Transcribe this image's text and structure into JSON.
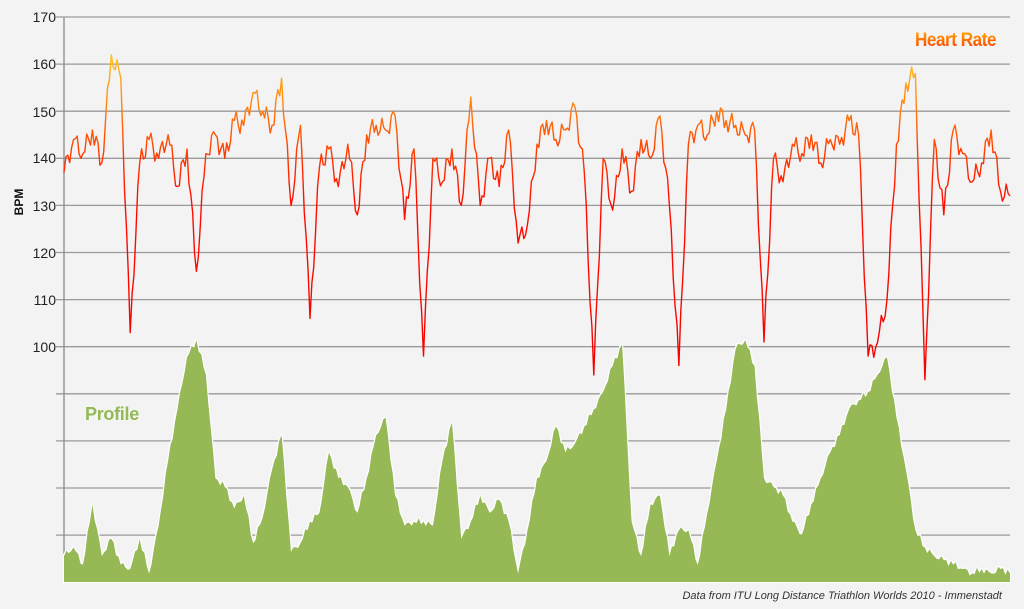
{
  "chart_data": [
    {
      "type": "line",
      "title": "Heart Rate",
      "xlabel": "",
      "ylabel": "BPM",
      "ylim": [
        100,
        170
      ],
      "yticks": [
        170,
        160,
        150,
        140,
        130,
        120,
        110,
        100
      ],
      "grid": true,
      "legend": "none",
      "color_scale": {
        "low": "#ff0000",
        "mid": "#ff7a10",
        "high": "#ffee00"
      },
      "x": [
        0,
        1,
        2,
        3,
        4,
        5,
        6,
        7,
        8,
        9,
        10,
        11,
        12,
        13,
        14,
        15,
        16,
        17,
        18,
        19,
        20,
        21,
        22,
        23,
        24,
        25,
        26,
        27,
        28,
        29,
        30,
        31,
        32,
        33,
        34,
        35,
        36,
        37,
        38,
        39,
        40,
        41,
        42,
        43,
        44,
        45,
        46,
        47,
        48,
        49,
        50,
        51,
        52,
        53,
        54,
        55,
        56,
        57,
        58,
        59,
        60,
        61,
        62,
        63,
        64,
        65,
        66,
        67,
        68,
        69,
        70,
        71,
        72,
        73,
        74,
        75,
        76,
        77,
        78,
        79,
        80,
        81,
        82,
        83,
        84,
        85,
        86,
        87,
        88,
        89,
        90,
        91,
        92,
        93,
        94,
        95,
        96,
        97,
        98,
        99,
        100
      ],
      "series": [
        {
          "name": "Heart Rate",
          "values": [
            137,
            144,
            141,
            146,
            139,
            162,
            157,
            103,
            139,
            144,
            140,
            145,
            134,
            142,
            116,
            141,
            145,
            140,
            148,
            147,
            154,
            150,
            147,
            157,
            130,
            147,
            106,
            138,
            142,
            134,
            143,
            128,
            145,
            147,
            146,
            149,
            127,
            142,
            98,
            140,
            135,
            142,
            130,
            153,
            130,
            140,
            134,
            146,
            122,
            126,
            143,
            148,
            144,
            146,
            151,
            137,
            94,
            140,
            129,
            142,
            133,
            144,
            140,
            149,
            130,
            96,
            143,
            147,
            145,
            150,
            148,
            147,
            145,
            146,
            101,
            140,
            135,
            143,
            141,
            145,
            139,
            144,
            143,
            148,
            145,
            98,
            101,
            110,
            143,
            156,
            158,
            93,
            144,
            128,
            146,
            141,
            135,
            139,
            146,
            133,
            132
          ]
        }
      ]
    },
    {
      "type": "area",
      "title": "Profile",
      "xlabel": "",
      "ylabel": "",
      "grid": true,
      "unit": "relative elevation (unlabeled axis)",
      "color": "#96b956",
      "x": [
        0,
        1,
        2,
        3,
        4,
        5,
        6,
        7,
        8,
        9,
        10,
        11,
        12,
        13,
        14,
        15,
        16,
        17,
        18,
        19,
        20,
        21,
        22,
        23,
        24,
        25,
        26,
        27,
        28,
        29,
        30,
        31,
        32,
        33,
        34,
        35,
        36,
        37,
        38,
        39,
        40,
        41,
        42,
        43,
        44,
        45,
        46,
        47,
        48,
        49,
        50,
        51,
        52,
        53,
        54,
        55,
        56,
        57,
        58,
        59,
        60,
        61,
        62,
        63,
        64,
        65,
        66,
        67,
        68,
        69,
        70,
        71,
        72,
        73,
        74,
        75,
        76,
        77,
        78,
        79,
        80,
        81,
        82,
        83,
        84,
        85,
        86,
        87,
        88,
        89,
        90,
        91,
        92,
        93,
        94,
        95,
        96,
        97,
        98,
        99,
        100
      ],
      "series": [
        {
          "name": "Profile",
          "values": [
            6,
            8,
            4,
            18,
            6,
            10,
            4,
            3,
            10,
            2,
            13,
            28,
            40,
            52,
            56,
            48,
            24,
            22,
            17,
            20,
            9,
            15,
            26,
            34,
            7,
            9,
            14,
            16,
            30,
            24,
            22,
            16,
            24,
            34,
            38,
            20,
            13,
            14,
            14,
            13,
            28,
            37,
            10,
            14,
            20,
            16,
            19,
            14,
            2,
            12,
            24,
            28,
            36,
            30,
            32,
            36,
            40,
            44,
            50,
            55,
            14,
            6,
            18,
            20,
            6,
            12,
            12,
            4,
            16,
            28,
            40,
            54,
            56,
            50,
            24,
            22,
            20,
            14,
            11,
            18,
            24,
            30,
            34,
            40,
            42,
            44,
            48,
            52,
            38,
            26,
            12,
            8,
            6,
            5,
            4,
            3,
            2,
            3,
            2,
            3,
            2
          ]
        }
      ]
    }
  ],
  "labels": {
    "yaxis_title": "BPM",
    "yticks": [
      "170",
      "160",
      "150",
      "140",
      "130",
      "120",
      "110",
      "100"
    ],
    "heart_rate_title": "Heart Rate",
    "profile_title": "Profile",
    "footnote": "Data from ITU Long Distance Triathlon Worlds 2010 - Immenstadt"
  },
  "colors": {
    "background": "#f3f3f3",
    "grid": "#9a9a9a",
    "axis": "#8a8a8a",
    "hr_low": "#ff0000",
    "hr_mid": "#ff7a10",
    "hr_high": "#ffee00",
    "profile_fill": "#96b956",
    "profile_edge": "#ffffff"
  }
}
